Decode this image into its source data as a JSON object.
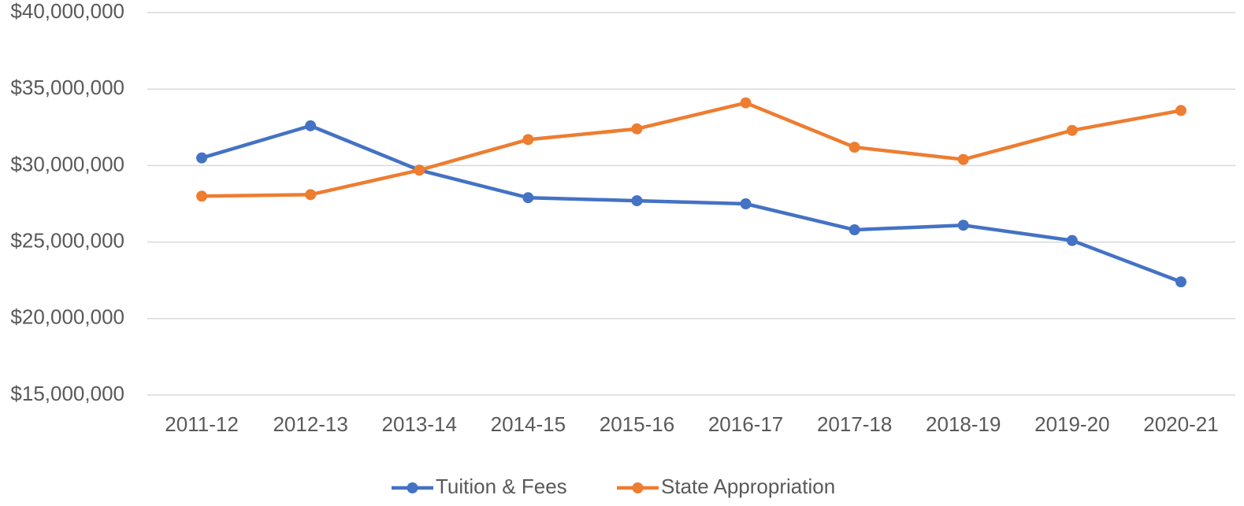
{
  "chart_data": {
    "type": "line",
    "categories": [
      "2011-12",
      "2012-13",
      "2013-14",
      "2014-15",
      "2015-16",
      "2016-17",
      "2017-18",
      "2018-19",
      "2019-20",
      "2020-21"
    ],
    "series": [
      {
        "name": "Tuition & Fees",
        "color": "#4472c4",
        "values": [
          30500000,
          32600000,
          29700000,
          27900000,
          27700000,
          27500000,
          25800000,
          26100000,
          25100000,
          22400000
        ]
      },
      {
        "name": "State Appropriation",
        "color": "#ed7d31",
        "values": [
          28000000,
          28100000,
          29700000,
          31700000,
          32400000,
          34100000,
          31200000,
          30400000,
          32300000,
          33600000
        ]
      }
    ],
    "ylim": [
      15000000,
      40000000
    ],
    "yticks": [
      {
        "value": 15000000,
        "label": "$15,000,000"
      },
      {
        "value": 20000000,
        "label": "$20,000,000"
      },
      {
        "value": 25000000,
        "label": "$25,000,000"
      },
      {
        "value": 30000000,
        "label": "$30,000,000"
      },
      {
        "value": 35000000,
        "label": "$35,000,000"
      },
      {
        "value": 40000000,
        "label": "$40,000,000"
      }
    ],
    "grid": true,
    "legend": "bottom"
  }
}
